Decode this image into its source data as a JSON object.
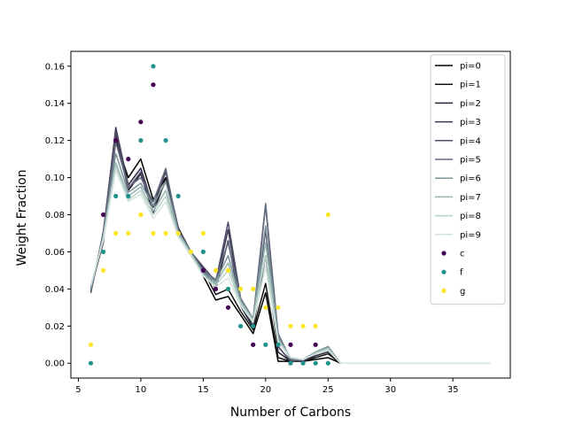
{
  "chart_data": {
    "type": "line",
    "xlabel": "Number of Carbons",
    "ylabel": "Weight Fraction",
    "xlim": [
      4.4,
      39.6
    ],
    "ylim": [
      -0.008,
      0.168
    ],
    "xticks": [
      5,
      10,
      15,
      20,
      25,
      30,
      35
    ],
    "yticks": [
      0.0,
      0.02,
      0.04,
      0.06,
      0.08,
      0.1,
      0.12,
      0.14,
      0.16
    ],
    "ytick_labels": [
      "0.00",
      "0.02",
      "0.04",
      "0.06",
      "0.08",
      "0.10",
      "0.12",
      "0.14",
      "0.16"
    ],
    "grid": false,
    "legend_position": "upper right",
    "line_x": [
      6,
      7,
      8,
      9,
      10,
      11,
      12,
      13,
      14,
      15,
      16,
      17,
      18,
      19,
      20,
      21,
      22,
      23,
      24,
      25,
      26,
      27,
      28,
      29,
      30,
      31,
      32,
      33,
      34,
      35,
      36,
      37,
      38
    ],
    "line_series": [
      {
        "name": "pi=0",
        "color": "#000000",
        "values": [
          0.041,
          0.065,
          0.12,
          0.1,
          0.11,
          0.088,
          0.1,
          0.073,
          0.06,
          0.047,
          0.034,
          0.036,
          0.026,
          0.016,
          0.038,
          0.001,
          0.001,
          0.001,
          0.002,
          0.003,
          0,
          0,
          0,
          0,
          0,
          0,
          0,
          0,
          0,
          0,
          0,
          0,
          0
        ]
      },
      {
        "name": "pi=1",
        "color": "#111111",
        "values": [
          0.04,
          0.066,
          0.121,
          0.096,
          0.105,
          0.084,
          0.098,
          0.072,
          0.06,
          0.05,
          0.037,
          0.04,
          0.028,
          0.018,
          0.043,
          0.003,
          0.001,
          0.001,
          0.003,
          0.005,
          0,
          0,
          0,
          0,
          0,
          0,
          0,
          0,
          0,
          0,
          0,
          0,
          0
        ]
      },
      {
        "name": "pi=2",
        "color": "#262636",
        "values": [
          0.039,
          0.068,
          0.124,
          0.093,
          0.102,
          0.081,
          0.099,
          0.071,
          0.06,
          0.051,
          0.04,
          0.066,
          0.031,
          0.019,
          0.058,
          0.006,
          0.001,
          0.001,
          0.004,
          0.006,
          0,
          0,
          0,
          0,
          0,
          0,
          0,
          0,
          0,
          0,
          0,
          0,
          0
        ]
      },
      {
        "name": "pi=3",
        "color": "#3a3852",
        "values": [
          0.038,
          0.07,
          0.127,
          0.096,
          0.105,
          0.084,
          0.103,
          0.073,
          0.06,
          0.051,
          0.042,
          0.072,
          0.033,
          0.02,
          0.072,
          0.009,
          0.001,
          0.001,
          0.005,
          0.007,
          0,
          0,
          0,
          0,
          0,
          0,
          0,
          0,
          0,
          0,
          0,
          0,
          0
        ]
      },
      {
        "name": "pi=4",
        "color": "#504d66",
        "values": [
          0.038,
          0.071,
          0.125,
          0.094,
          0.103,
          0.084,
          0.104,
          0.072,
          0.06,
          0.052,
          0.044,
          0.076,
          0.035,
          0.022,
          0.085,
          0.013,
          0.002,
          0.002,
          0.006,
          0.008,
          0,
          0,
          0,
          0,
          0,
          0,
          0,
          0,
          0,
          0,
          0,
          0,
          0
        ]
      },
      {
        "name": "pi=5",
        "color": "#646b80",
        "values": [
          0.039,
          0.07,
          0.119,
          0.095,
          0.1,
          0.087,
          0.105,
          0.071,
          0.06,
          0.05,
          0.045,
          0.065,
          0.035,
          0.024,
          0.086,
          0.016,
          0.002,
          0.002,
          0.006,
          0.009,
          0,
          0,
          0,
          0,
          0,
          0,
          0,
          0,
          0,
          0,
          0,
          0,
          0
        ]
      },
      {
        "name": "pi=6",
        "color": "#7a9499",
        "values": [
          0.04,
          0.069,
          0.113,
          0.092,
          0.097,
          0.085,
          0.098,
          0.071,
          0.06,
          0.049,
          0.044,
          0.058,
          0.034,
          0.024,
          0.074,
          0.014,
          0.003,
          0.002,
          0.006,
          0.009,
          0,
          0,
          0,
          0,
          0,
          0,
          0,
          0,
          0,
          0,
          0,
          0,
          0
        ]
      },
      {
        "name": "pi=7",
        "color": "#97b6b3",
        "values": [
          0.041,
          0.068,
          0.108,
          0.09,
          0.095,
          0.082,
          0.093,
          0.07,
          0.059,
          0.048,
          0.043,
          0.054,
          0.033,
          0.023,
          0.065,
          0.013,
          0.003,
          0.002,
          0.006,
          0.008,
          0,
          0,
          0,
          0,
          0,
          0,
          0,
          0,
          0,
          0,
          0,
          0,
          0
        ]
      },
      {
        "name": "pi=8",
        "color": "#b8d1c9",
        "values": [
          0.042,
          0.067,
          0.106,
          0.088,
          0.093,
          0.08,
          0.09,
          0.069,
          0.059,
          0.047,
          0.042,
          0.05,
          0.032,
          0.023,
          0.058,
          0.012,
          0.003,
          0.002,
          0.005,
          0.008,
          0,
          0,
          0,
          0,
          0,
          0,
          0,
          0,
          0,
          0,
          0,
          0,
          0
        ]
      },
      {
        "name": "pi=9",
        "color": "#d4e5df",
        "values": [
          0.042,
          0.066,
          0.104,
          0.087,
          0.091,
          0.078,
          0.087,
          0.068,
          0.058,
          0.047,
          0.041,
          0.046,
          0.031,
          0.022,
          0.052,
          0.011,
          0.003,
          0.002,
          0.005,
          0.007,
          0,
          0,
          0,
          0,
          0,
          0,
          0,
          0,
          0,
          0,
          0,
          0,
          0
        ]
      }
    ],
    "scatter_series": [
      {
        "name": "c",
        "color": "#440154",
        "x": [
          7,
          8,
          9,
          10,
          11,
          15,
          16,
          17,
          19,
          21,
          22,
          24
        ],
        "y": [
          0.08,
          0.12,
          0.11,
          0.13,
          0.15,
          0.05,
          0.04,
          0.03,
          0.01,
          0.01,
          0.01,
          0.01
        ]
      },
      {
        "name": "f",
        "color": "#21918c",
        "x": [
          6,
          7,
          8,
          9,
          10,
          11,
          12,
          13,
          15,
          17,
          18,
          19,
          20,
          21,
          22,
          23,
          24,
          25
        ],
        "y": [
          0.0,
          0.06,
          0.09,
          0.09,
          0.12,
          0.16,
          0.12,
          0.09,
          0.06,
          0.04,
          0.02,
          0.02,
          0.01,
          0.01,
          0.0,
          0.0,
          0.0,
          0.0
        ]
      },
      {
        "name": "g",
        "color": "#fde725",
        "x": [
          6,
          7,
          8,
          9,
          10,
          11,
          12,
          13,
          14,
          15,
          16,
          17,
          18,
          19,
          20,
          21,
          22,
          23,
          24,
          25
        ],
        "y": [
          0.01,
          0.05,
          0.07,
          0.07,
          0.08,
          0.07,
          0.07,
          0.07,
          0.06,
          0.07,
          0.05,
          0.05,
          0.04,
          0.04,
          0.03,
          0.03,
          0.02,
          0.02,
          0.02,
          0.08
        ]
      }
    ]
  }
}
